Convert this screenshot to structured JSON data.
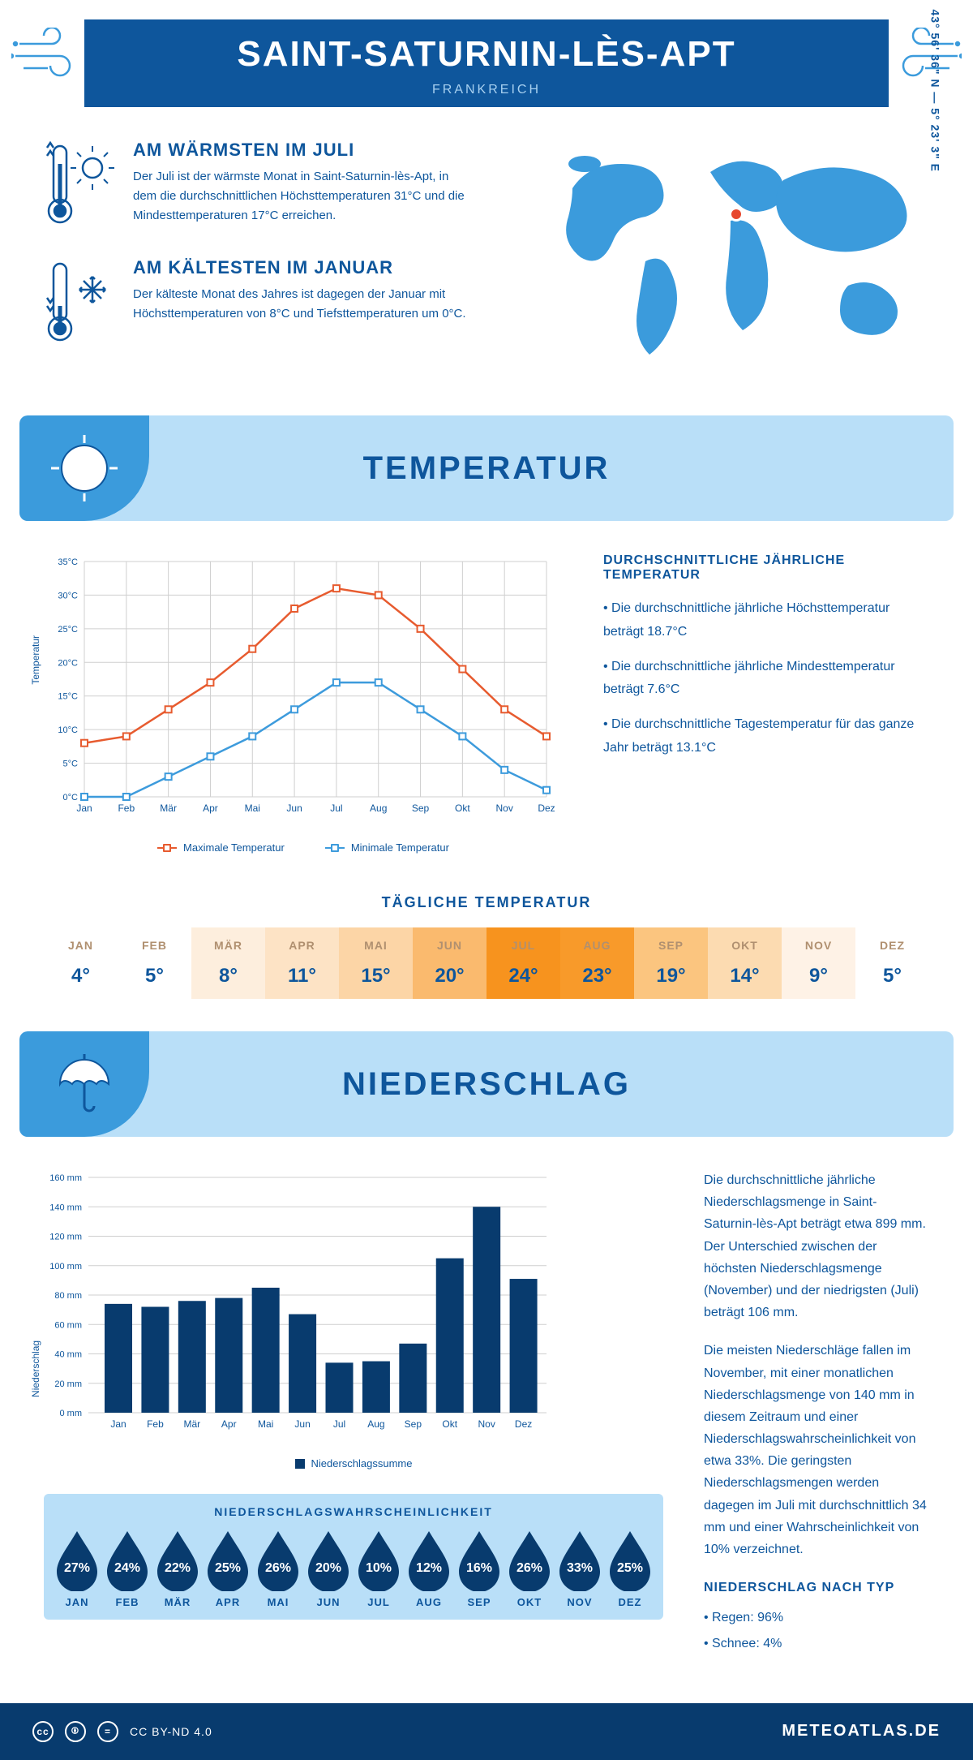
{
  "header": {
    "title": "SAINT-SATURNIN-LÈS-APT",
    "subtitle": "FRANKREICH"
  },
  "coords": "43° 56' 36\" N — 5° 23' 3\" E",
  "facts": {
    "warm": {
      "title": "AM WÄRMSTEN IM JULI",
      "text": "Der Juli ist der wärmste Monat in Saint-Saturnin-lès-Apt, in dem die durchschnittlichen Höchsttemperaturen 31°C und die Mindesttemperaturen 17°C erreichen."
    },
    "cold": {
      "title": "AM KÄLTESTEN IM JANUAR",
      "text": "Der kälteste Monat des Jahres ist dagegen der Januar mit Höchsttemperaturen von 8°C und Tiefsttemperaturen um 0°C."
    }
  },
  "sections": {
    "temp": "TEMPERATUR",
    "precip": "NIEDERSCHLAG"
  },
  "temp_chart": {
    "type": "line",
    "months": [
      "Jan",
      "Feb",
      "Mär",
      "Apr",
      "Mai",
      "Jun",
      "Jul",
      "Aug",
      "Sep",
      "Okt",
      "Nov",
      "Dez"
    ],
    "max_values": [
      8,
      9,
      13,
      17,
      22,
      28,
      31,
      30,
      25,
      19,
      13,
      9
    ],
    "min_values": [
      0,
      0,
      3,
      6,
      9,
      13,
      17,
      17,
      13,
      9,
      4,
      1
    ],
    "max_color": "#e75b2f",
    "min_color": "#3d9bdc",
    "ylim": [
      0,
      35
    ],
    "ytick_step": 5,
    "ylabel": "Temperatur",
    "legend_max": "Maximale Temperatur",
    "legend_min": "Minimale Temperatur",
    "grid_color": "#cfcfcf",
    "bg": "#ffffff"
  },
  "temp_info": {
    "title": "DURCHSCHNITTLICHE JÄHRLICHE TEMPERATUR",
    "b1": "• Die durchschnittliche jährliche Höchsttemperatur beträgt 18.7°C",
    "b2": "• Die durchschnittliche jährliche Mindesttemperatur beträgt 7.6°C",
    "b3": "• Die durchschnittliche Tagestemperatur für das ganze Jahr beträgt 13.1°C"
  },
  "daily": {
    "title": "TÄGLICHE TEMPERATUR",
    "months": [
      "JAN",
      "FEB",
      "MÄR",
      "APR",
      "MAI",
      "JUN",
      "JUL",
      "AUG",
      "SEP",
      "OKT",
      "NOV",
      "DEZ"
    ],
    "values": [
      "4°",
      "5°",
      "8°",
      "11°",
      "15°",
      "20°",
      "24°",
      "23°",
      "19°",
      "14°",
      "9°",
      "5°"
    ],
    "colors": [
      "#ffffff",
      "#ffffff",
      "#fdeedd",
      "#fde3c5",
      "#fcd5a6",
      "#faba6e",
      "#f7931e",
      "#f89a2a",
      "#fbc57f",
      "#fcdbb1",
      "#fef2e6",
      "#ffffff"
    ]
  },
  "precip_chart": {
    "type": "bar",
    "months": [
      "Jan",
      "Feb",
      "Mär",
      "Apr",
      "Mai",
      "Jun",
      "Jul",
      "Aug",
      "Sep",
      "Okt",
      "Nov",
      "Dez"
    ],
    "values": [
      74,
      72,
      76,
      78,
      85,
      67,
      34,
      35,
      47,
      105,
      140,
      91
    ],
    "bar_color": "#083b6e",
    "ylim": [
      0,
      160
    ],
    "ytick_step": 20,
    "ylabel": "Niederschlag",
    "legend": "Niederschlagssumme",
    "grid_color": "#cfcfcf"
  },
  "precip_text": {
    "p1": "Die durchschnittliche jährliche Niederschlagsmenge in Saint-Saturnin-lès-Apt beträgt etwa 899 mm. Der Unterschied zwischen der höchsten Niederschlagsmenge (November) und der niedrigsten (Juli) beträgt 106 mm.",
    "p2": "Die meisten Niederschläge fallen im November, mit einer monatlichen Niederschlagsmenge von 140 mm in diesem Zeitraum und einer Niederschlagswahrscheinlichkeit von etwa 33%. Die geringsten Niederschlagsmengen werden dagegen im Juli mit durchschnittlich 34 mm und einer Wahrscheinlichkeit von 10% verzeichnet.",
    "type_title": "NIEDERSCHLAG NACH TYP",
    "type1": "• Regen: 96%",
    "type2": "• Schnee: 4%"
  },
  "prob": {
    "title": "NIEDERSCHLAGSWAHRSCHEINLICHKEIT",
    "months": [
      "JAN",
      "FEB",
      "MÄR",
      "APR",
      "MAI",
      "JUN",
      "JUL",
      "AUG",
      "SEP",
      "OKT",
      "NOV",
      "DEZ"
    ],
    "values": [
      "27%",
      "24%",
      "22%",
      "25%",
      "26%",
      "20%",
      "10%",
      "12%",
      "16%",
      "26%",
      "33%",
      "25%"
    ],
    "drop_color": "#083b6e"
  },
  "footer": {
    "license": "CC BY-ND 4.0",
    "brand": "METEOATLAS.DE"
  }
}
